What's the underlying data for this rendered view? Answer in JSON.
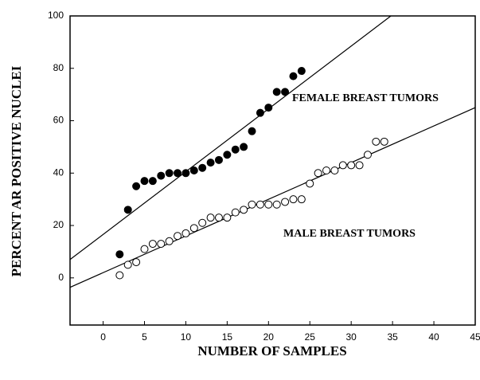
{
  "chart_data": {
    "type": "scatter",
    "x_label": "NUMBER OF SAMPLES",
    "y_label": "PERCENT AR POSITIVE NUCLEI",
    "xlim": [
      -4,
      45
    ],
    "ylim": [
      -18,
      100
    ],
    "xticks": [
      0,
      5,
      10,
      15,
      20,
      25,
      30,
      35,
      40,
      45
    ],
    "yticks": [
      0,
      20,
      40,
      60,
      80,
      100
    ],
    "grid": false,
    "series": [
      {
        "name": "FEMALE BREAST TUMORS",
        "color": "#000000",
        "x": [
          2,
          3,
          4,
          5,
          6,
          7,
          8,
          9,
          10,
          11,
          12,
          13,
          14,
          15,
          16,
          17,
          18,
          19,
          20,
          21,
          22,
          23,
          24
        ],
        "values": [
          9,
          26,
          35,
          37,
          37,
          39,
          40,
          40,
          40,
          41,
          42,
          44,
          45,
          47,
          49,
          50,
          56,
          63,
          65,
          71,
          71,
          77,
          79
        ],
        "fit": {
          "x": [
            -4,
            34.8
          ],
          "y": [
            7,
            100
          ]
        }
      },
      {
        "name": "MALE BREAST TUMORS",
        "color": "#ffffff",
        "x": [
          2,
          3,
          4,
          5,
          6,
          7,
          8,
          9,
          10,
          11,
          12,
          13,
          14,
          15,
          16,
          17,
          18,
          19,
          20,
          21,
          22,
          23,
          24,
          25,
          26,
          27,
          28,
          29,
          30,
          31,
          32,
          33,
          34
        ],
        "values": [
          1,
          5,
          6,
          11,
          13,
          13,
          14,
          16,
          17,
          19,
          21,
          23,
          23,
          23,
          25,
          26,
          28,
          28,
          28,
          28,
          29,
          30,
          30,
          36,
          40,
          41,
          41,
          43,
          43,
          43,
          47,
          52,
          52
        ],
        "fit": {
          "x": [
            -4,
            45
          ],
          "y": [
            -3.6,
            65
          ]
        }
      }
    ]
  }
}
